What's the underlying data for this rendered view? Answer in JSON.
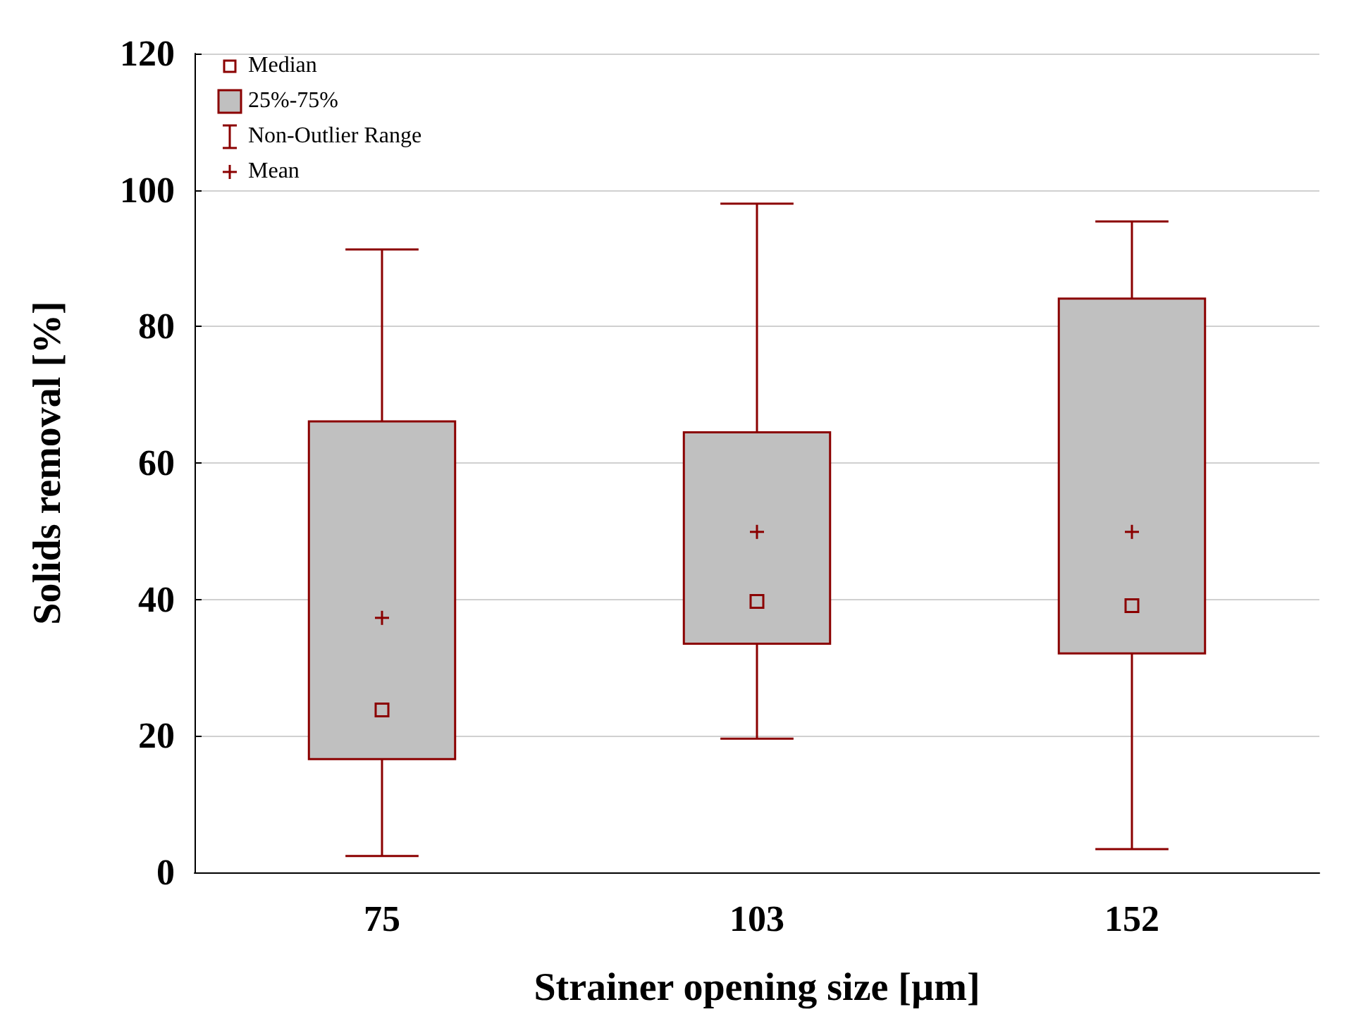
{
  "chart_data": {
    "type": "box",
    "xlabel": "Strainer opening size [µm]",
    "ylabel": "Solids removal [%]",
    "categories": [
      "75",
      "103",
      "152"
    ],
    "series": [
      {
        "name": "25%-75%",
        "color": "#c0c0c0",
        "boxes": [
          {
            "low": 2.4,
            "q1": 16.6,
            "median": 23.8,
            "q3": 66.1,
            "high": 91.3,
            "mean": 37.3
          },
          {
            "low": 19.6,
            "q1": 33.5,
            "median": 39.7,
            "q3": 64.5,
            "high": 98.0,
            "mean": 49.9
          },
          {
            "low": 3.4,
            "q1": 32.1,
            "median": 39.1,
            "q3": 84.1,
            "high": 95.4,
            "mean": 49.9
          }
        ]
      }
    ],
    "annotations": [
      "Median",
      "Non-Outlier Range",
      "Mean"
    ],
    "ylim": [
      0,
      120
    ],
    "yticks": [
      0,
      20,
      40,
      60,
      80,
      100,
      120
    ],
    "grid": "y",
    "legend": "top left"
  }
}
